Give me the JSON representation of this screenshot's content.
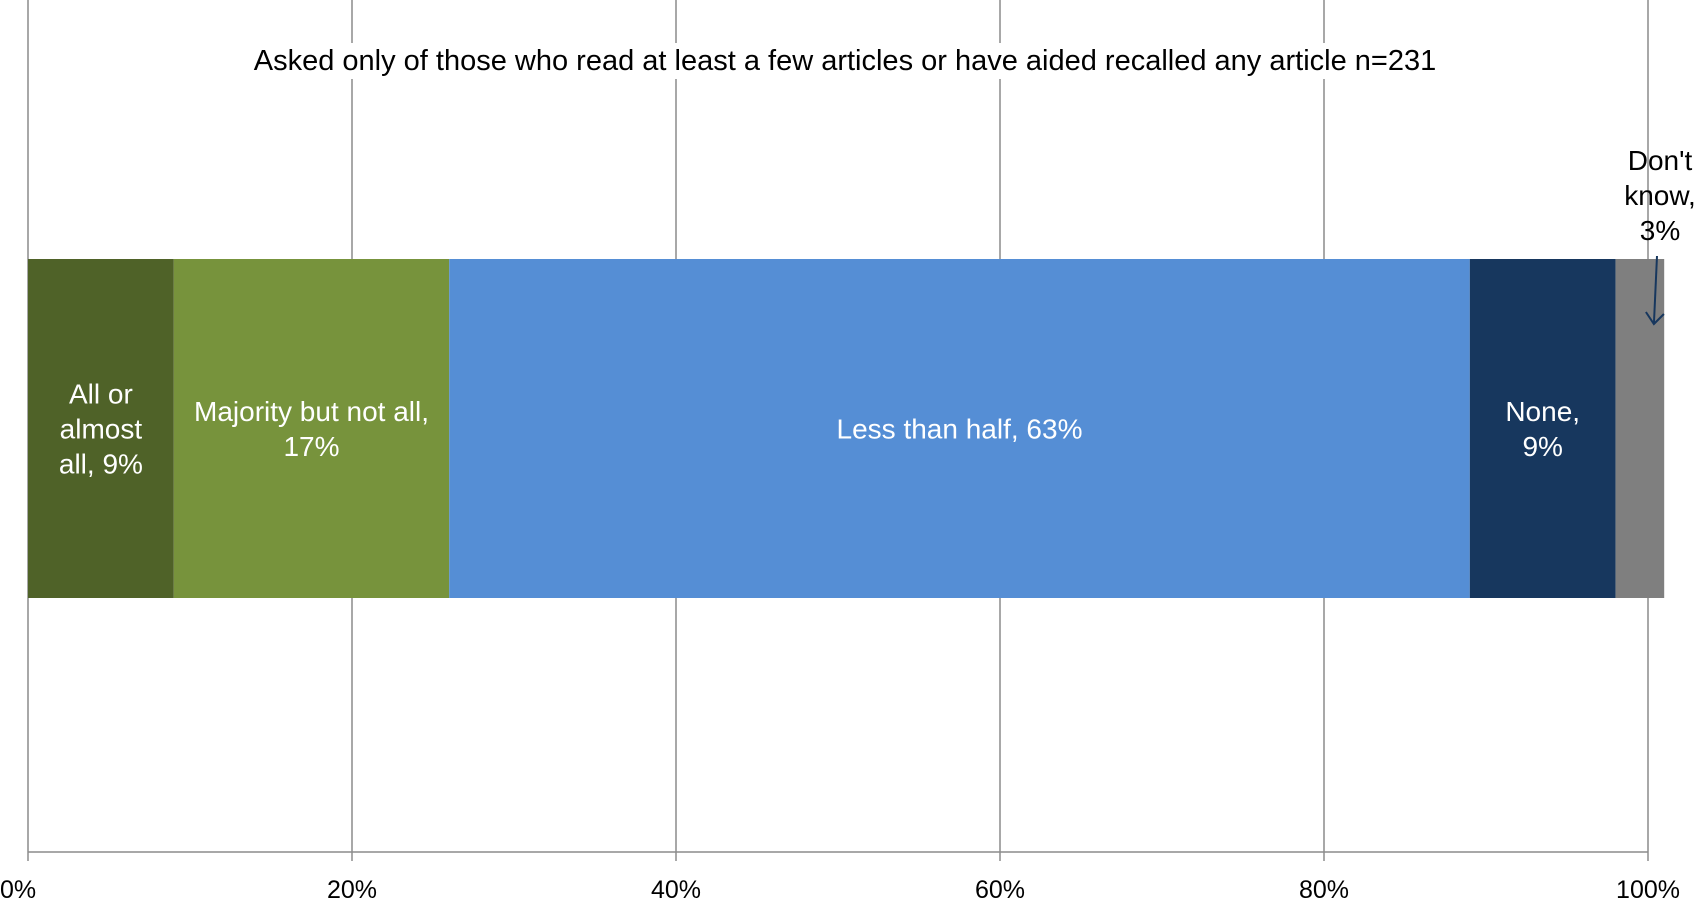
{
  "chart_data": {
    "type": "bar",
    "orientation": "horizontal",
    "stacked": true,
    "note": "Asked only of those who read at least a few articles or have aided recalled any article n=231",
    "title": "",
    "xlabel": "",
    "ylabel": "",
    "xlim": [
      0,
      100
    ],
    "x_ticks": [
      "0%",
      "20%",
      "40%",
      "60%",
      "80%",
      "100%"
    ],
    "grid": true,
    "legend": "none",
    "series": [
      {
        "name": "All or almost all",
        "value": 9,
        "label": "All or almost all, 9%",
        "label_lines": [
          "All or",
          "almost",
          "all, 9%"
        ],
        "color": "#4f6228"
      },
      {
        "name": "Majority but not all",
        "value": 17,
        "label": "Majority but not all, 17%",
        "label_lines": [
          "Majority but not all,",
          "17%"
        ],
        "color": "#77933c"
      },
      {
        "name": "Less than half",
        "value": 63,
        "label": "Less than half, 63%",
        "label_lines": [
          "Less than half, 63%"
        ],
        "color": "#558ed5"
      },
      {
        "name": "None",
        "value": 9,
        "label": "None, 9%",
        "label_lines": [
          "None,",
          "9%"
        ],
        "color": "#17375e"
      },
      {
        "name": "Don't know",
        "value": 3,
        "label": "Don't know, 3%",
        "label_lines": [
          "Don't",
          "know,",
          "3%"
        ],
        "color": "#7f7f7f",
        "callout": true
      }
    ]
  }
}
